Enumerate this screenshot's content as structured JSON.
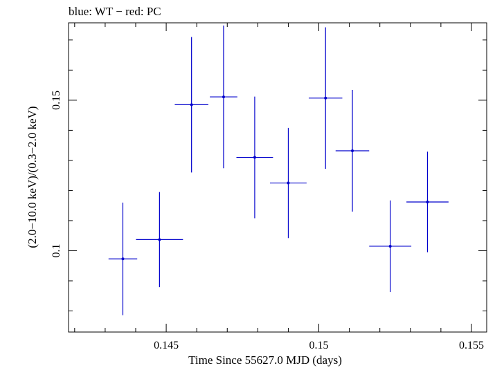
{
  "chart_data": {
    "type": "scatter",
    "title": "blue: WT − red: PC",
    "xlabel": "Time Since 55627.0 MJD (days)",
    "ylabel": "(2.0−10.0 keV)/(0.3−2.0 keV)",
    "xlim": [
      0.1418,
      0.1555
    ],
    "ylim": [
      0.073,
      0.1757
    ],
    "x_ticks": [
      {
        "value": 0.145,
        "label": "0.145"
      },
      {
        "value": 0.15,
        "label": "0.15"
      },
      {
        "value": 0.155,
        "label": "0.155"
      }
    ],
    "y_ticks": [
      {
        "value": 0.1,
        "label": "0.1"
      },
      {
        "value": 0.15,
        "label": "0.15"
      }
    ],
    "grid": false,
    "series": [
      {
        "color": "#0000cc",
        "points": [
          {
            "x": 0.14358,
            "xerr": 0.00047,
            "y": 0.0973,
            "yerr": 0.0187
          },
          {
            "x": 0.14478,
            "xerr": 0.00077,
            "y": 0.1037,
            "yerr": 0.0158
          },
          {
            "x": 0.14583,
            "xerr": 0.00055,
            "y": 0.1485,
            "yerr": 0.0225
          },
          {
            "x": 0.14688,
            "xerr": 0.00045,
            "y": 0.1511,
            "yerr": 0.0237
          },
          {
            "x": 0.1479,
            "xerr": 0.0006,
            "y": 0.131,
            "yerr": 0.0202
          },
          {
            "x": 0.149,
            "xerr": 0.0006,
            "y": 0.1225,
            "yerr": 0.0183
          },
          {
            "x": 0.15022,
            "xerr": 0.00055,
            "y": 0.1507,
            "yerr": 0.0235
          },
          {
            "x": 0.1511,
            "xerr": 0.00055,
            "y": 0.1332,
            "yerr": 0.0202
          },
          {
            "x": 0.15234,
            "xerr": 0.00069,
            "y": 0.1015,
            "yerr": 0.0152
          },
          {
            "x": 0.15356,
            "xerr": 0.00069,
            "y": 0.1162,
            "yerr": 0.0167
          }
        ]
      }
    ]
  }
}
